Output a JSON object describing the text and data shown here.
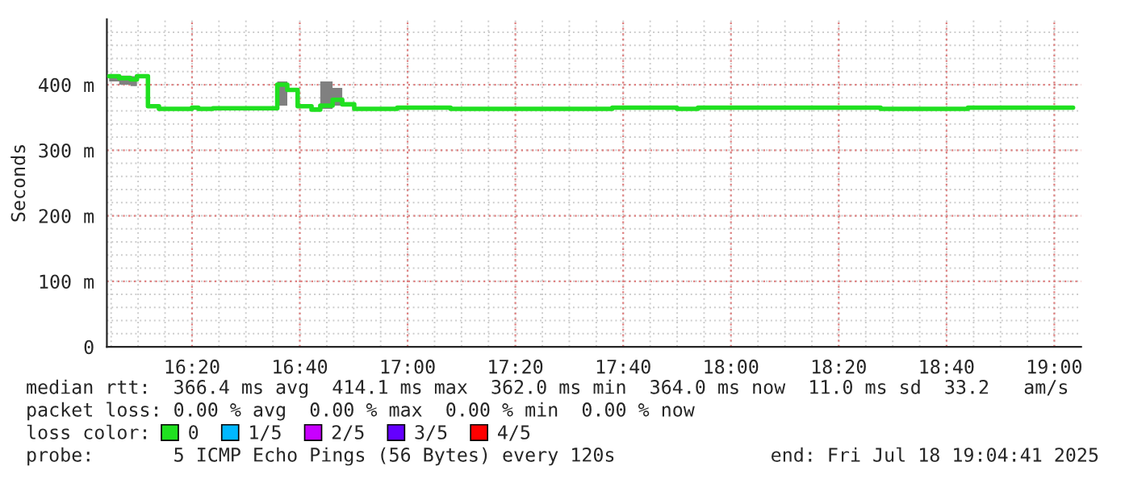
{
  "chart_data": {
    "type": "step",
    "ylabel": "Seconds",
    "x": [
      16.077,
      16.108,
      16.143,
      16.163,
      16.197,
      16.231,
      16.333,
      16.353,
      16.398,
      16.558,
      16.597,
      16.628,
      16.66,
      16.703,
      16.73,
      16.768,
      16.798,
      16.835,
      16.968,
      17.133,
      17.633,
      17.833,
      17.898,
      18.463,
      18.733,
      19.058
    ],
    "series": [
      {
        "name": "0",
        "color": "#20e020",
        "values": [
          413,
          410,
          408,
          413,
          367,
          363,
          365,
          363,
          364,
          364,
          400,
          392,
          367,
          362,
          368,
          377,
          370,
          363,
          365,
          363,
          365,
          363,
          365,
          363,
          365,
          365
        ],
        "lower": [
          405,
          400,
          398,
          395,
          null,
          null,
          null,
          null,
          null,
          null,
          368,
          363,
          null,
          null,
          363,
          368,
          363,
          null,
          null,
          null,
          null,
          null,
          null,
          null,
          null,
          null
        ],
        "upper": [
          416,
          414,
          413,
          415,
          null,
          null,
          null,
          null,
          null,
          null,
          405,
          408,
          null,
          null,
          405,
          395,
          403,
          null,
          null,
          null,
          null,
          null,
          null,
          null,
          null,
          null
        ]
      },
      {
        "name": "1/5",
        "color": "#00b8ff",
        "values": [
          null,
          null,
          null,
          null,
          null,
          null,
          null,
          null,
          null,
          null,
          null,
          null,
          null,
          null,
          null,
          null,
          null,
          null,
          null,
          null,
          null,
          null,
          null,
          null,
          null,
          null
        ]
      },
      {
        "name": "2/5",
        "color": "#c800ff",
        "values": [
          null,
          null,
          null,
          null,
          null,
          null,
          null,
          null,
          null,
          null,
          null,
          null,
          null,
          null,
          null,
          null,
          null,
          null,
          null,
          null,
          null,
          null,
          null,
          null,
          null,
          null
        ]
      },
      {
        "name": "3/5",
        "color": "#6400ff",
        "values": [
          null,
          null,
          null,
          null,
          null,
          null,
          null,
          null,
          null,
          null,
          null,
          null,
          null,
          null,
          null,
          null,
          null,
          null,
          null,
          null,
          null,
          null,
          null,
          null,
          null,
          null
        ]
      },
      {
        "name": "4/5",
        "color": "#ff0000",
        "values": [
          null,
          null,
          null,
          null,
          null,
          null,
          null,
          null,
          null,
          null,
          null,
          null,
          null,
          null,
          null,
          null,
          null,
          null,
          null,
          null,
          null,
          null,
          null,
          null,
          null,
          null
        ]
      }
    ],
    "xlim": [
      16.07,
      19.083
    ],
    "xticks": [
      {
        "value": 16.3333,
        "label": "16:20"
      },
      {
        "value": 16.6667,
        "label": "16:40"
      },
      {
        "value": 17.0,
        "label": "17:00"
      },
      {
        "value": 17.3333,
        "label": "17:20"
      },
      {
        "value": 17.6667,
        "label": "17:40"
      },
      {
        "value": 18.0,
        "label": "18:00"
      },
      {
        "value": 18.3333,
        "label": "18:20"
      },
      {
        "value": 18.6667,
        "label": "18:40"
      },
      {
        "value": 19.0,
        "label": "19:00"
      }
    ],
    "ylim": [
      0,
      500
    ],
    "yticks": [
      0,
      {
        "value": 100,
        "label": "100 m"
      },
      {
        "value": 200,
        "label": "200 m"
      },
      {
        "value": 300,
        "label": "300 m"
      },
      {
        "value": 400,
        "label": "400 m"
      }
    ],
    "grid": true,
    "legend": "bottom",
    "legend_title": "loss color:",
    "annotations": [
      "median rtt:  366.4 ms avg  414.1 ms max  362.0 ms min  364.0 ms now  11.0 ms sd  33.2   am/s",
      "packet loss: 0.00 % avg  0.00 % max  0.00 % min  0.00 % now",
      "probe:       5 ICMP Echo Pings (56 Bytes) every 120s",
      "end: Fri Jul 18 19:04:41 2025"
    ]
  }
}
